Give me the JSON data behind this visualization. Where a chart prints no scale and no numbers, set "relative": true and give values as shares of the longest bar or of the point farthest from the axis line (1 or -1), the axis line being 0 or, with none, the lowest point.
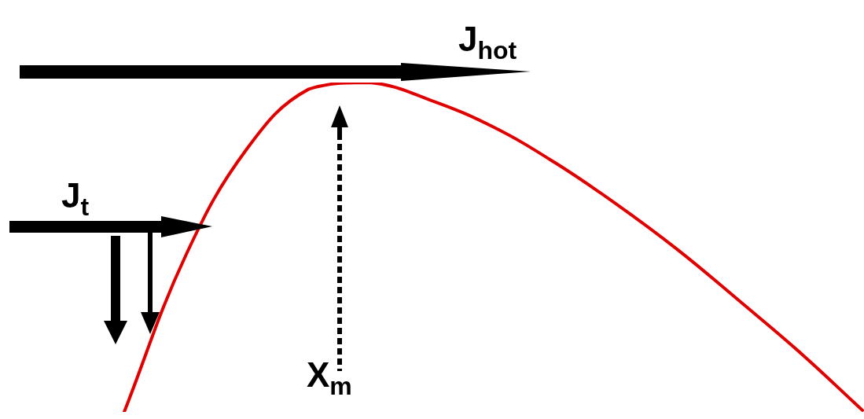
{
  "chart_data": {
    "type": "line",
    "relative": true,
    "categories": [
      null,
      null,
      null,
      null,
      null,
      null,
      null,
      null,
      null,
      null,
      null,
      null,
      null
    ],
    "series": [
      {
        "color": "#e00000",
        "values": [
          0,
          0.475,
          0.8,
          0.98,
          1,
          0.945,
          0.865,
          0.757,
          0.631,
          0.492,
          0.337,
          0.178,
          0.005
        ]
      }
    ],
    "marker": "none",
    "line_style": "solid",
    "grid": false,
    "legend": false,
    "tick_labels": false,
    "annotations": [
      "J$_{hot}$",
      "J$_{t}$",
      "X$_{m}$"
    ]
  }
}
